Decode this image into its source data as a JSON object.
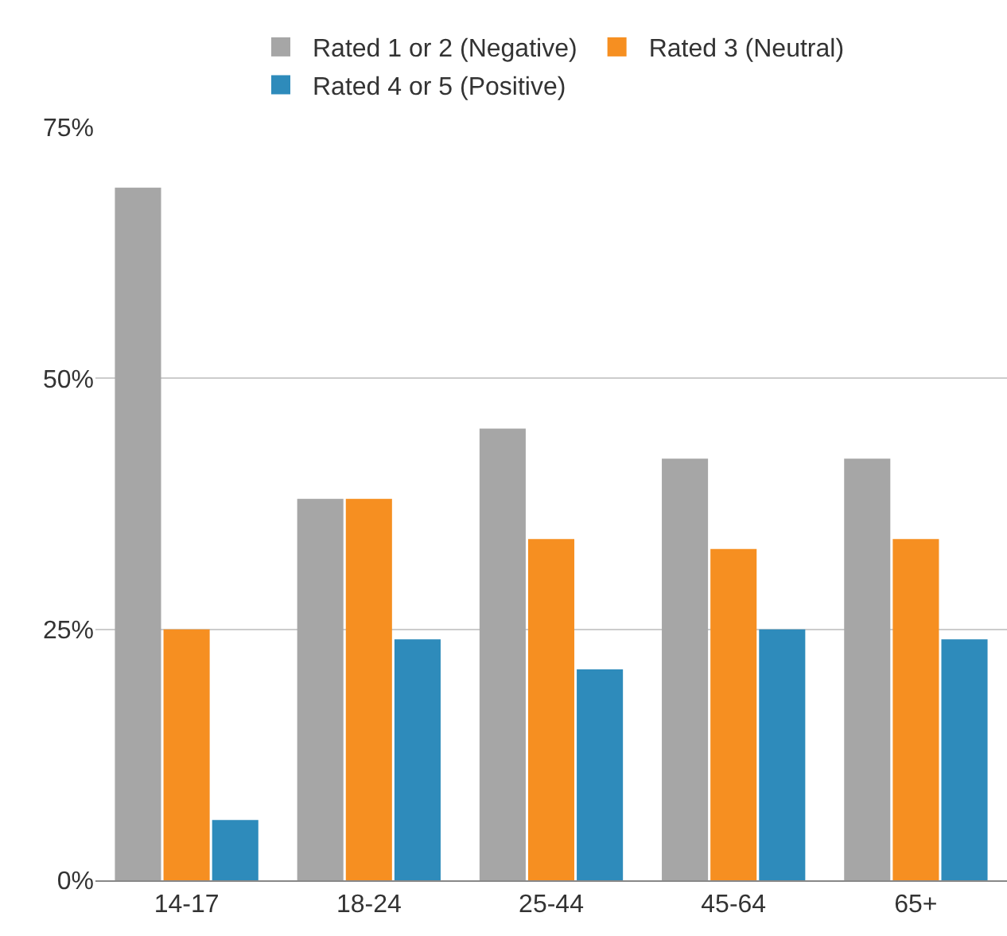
{
  "chart_data": {
    "type": "bar",
    "categories": [
      "14-17",
      "18-24",
      "25-44",
      "45-64",
      "65+"
    ],
    "series": [
      {
        "name": "Rated 1 or 2 (Negative)",
        "color": "#a6a6a6",
        "values": [
          69,
          38,
          45,
          42,
          42
        ]
      },
      {
        "name": "Rated 3 (Neutral)",
        "color": "#f68f21",
        "values": [
          25,
          38,
          34,
          33,
          34
        ]
      },
      {
        "name": "Rated 4 or 5 (Positive)",
        "color": "#2e8bbb",
        "values": [
          6,
          24,
          21,
          25,
          24
        ]
      }
    ],
    "ylim": [
      0,
      75
    ],
    "yticks": [
      {
        "value": 0,
        "label": "0%"
      },
      {
        "value": 25,
        "label": "25%"
      },
      {
        "value": 50,
        "label": "50%"
      },
      {
        "value": 75,
        "label": "75%"
      }
    ],
    "grid": "y",
    "legend": "top"
  }
}
